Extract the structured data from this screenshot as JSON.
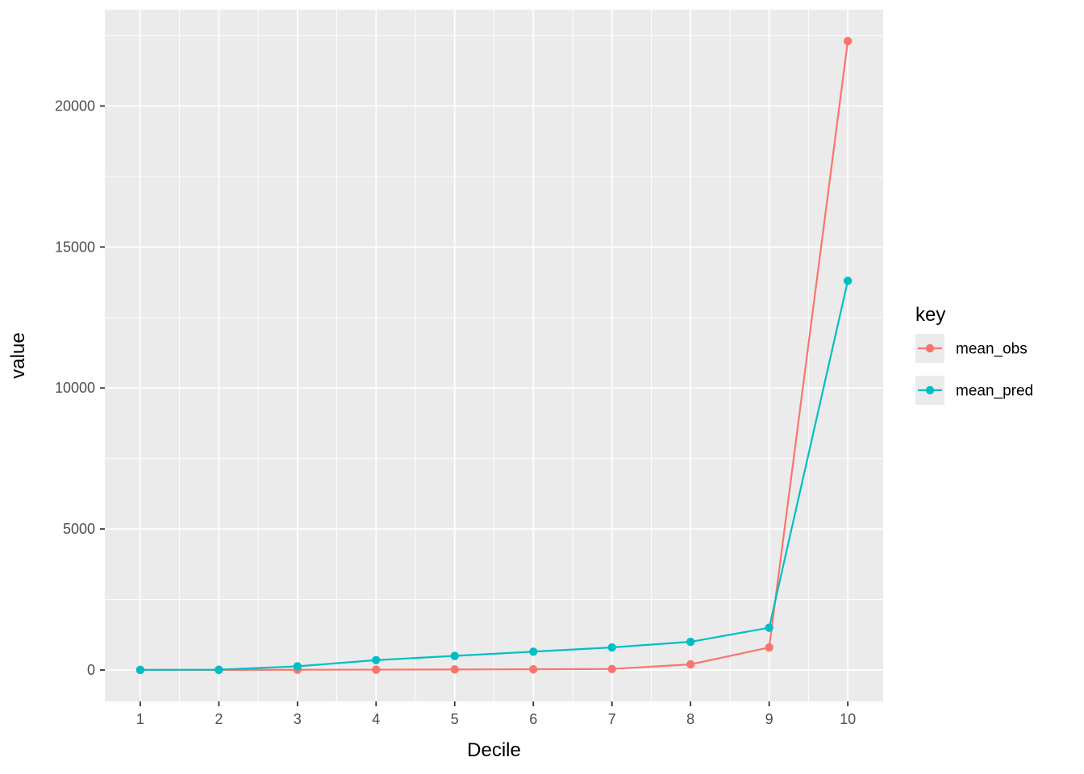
{
  "figure": {
    "background": "#FFFFFF",
    "panel_background": "#EBEBEB",
    "grid_color": "#FFFFFF",
    "tick_color": "#333333",
    "tick_label_color": "#4D4D4D",
    "axis_title_color": "#000000"
  },
  "chart_data": {
    "type": "line",
    "title": "",
    "xlabel": "Decile",
    "ylabel": "value",
    "x": [
      1,
      2,
      3,
      4,
      5,
      6,
      7,
      8,
      9,
      10
    ],
    "x_tick_labels": [
      "1",
      "2",
      "3",
      "4",
      "5",
      "6",
      "7",
      "8",
      "9",
      "10"
    ],
    "y_ticks": [
      0,
      5000,
      10000,
      15000,
      20000
    ],
    "y_tick_labels": [
      "0",
      "5000",
      "10000",
      "15000",
      "20000"
    ],
    "xlim": [
      0.55,
      10.45
    ],
    "ylim": [
      -1115,
      23415
    ],
    "grid": true,
    "minor_grid": true,
    "legend_position": "right",
    "legend_title": "key",
    "series": [
      {
        "name": "mean_obs",
        "color": "#F8766D",
        "values": [
          2,
          3,
          8,
          12,
          18,
          25,
          35,
          200,
          800,
          22300
        ]
      },
      {
        "name": "mean_pred",
        "color": "#00BFC4",
        "values": [
          5,
          10,
          130,
          350,
          500,
          650,
          800,
          1000,
          1500,
          13800
        ]
      }
    ]
  },
  "legend": {
    "title": "key",
    "items": [
      {
        "label": "mean_obs",
        "color": "#F8766D"
      },
      {
        "label": "mean_pred",
        "color": "#00BFC4"
      }
    ]
  }
}
